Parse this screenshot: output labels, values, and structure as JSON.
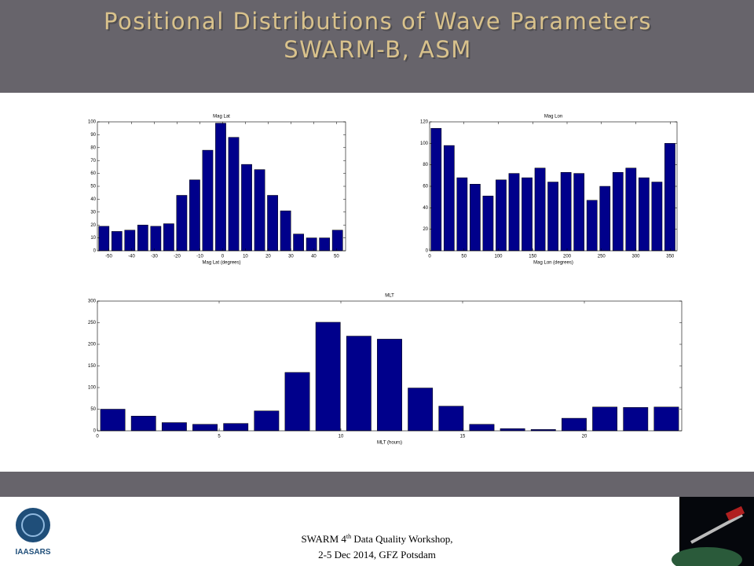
{
  "header": {
    "title": [
      "Positional Distributions of Wave Parameters",
      "SWARM-B, ASM"
    ]
  },
  "chart_data": [
    {
      "type": "histogram",
      "title": "Mag Lat",
      "x_label": "Mag Lat (degrees)",
      "color": "#00008b",
      "bins": [
        -55,
        -49.3,
        -43.6,
        -37.9,
        -32.2,
        -26.5,
        -20.8,
        -15.1,
        -9.4,
        -3.7,
        2,
        7.7,
        13.4,
        19.1,
        24.8,
        30.5,
        36.2,
        41.9,
        47.6,
        53.3
      ],
      "values": [
        19,
        15,
        16,
        20,
        19,
        21,
        43,
        55,
        78,
        99,
        88,
        67,
        63,
        43,
        31,
        13,
        10,
        10,
        16
      ],
      "xlim": [
        -55,
        54
      ],
      "xticks": [
        -50,
        -40,
        -30,
        -20,
        -10,
        0,
        10,
        20,
        30,
        40,
        50
      ],
      "ylim": [
        0,
        100
      ],
      "yticks": [
        0,
        10,
        20,
        30,
        40,
        50,
        60,
        70,
        80,
        90,
        100
      ]
    },
    {
      "type": "histogram",
      "title": "Mag Lon",
      "x_label": "Mag Lon (degrees)",
      "color": "#00008b",
      "bins": [
        0,
        18.9,
        37.8,
        56.7,
        75.6,
        94.5,
        113.4,
        132.3,
        151.2,
        170.1,
        189,
        207.9,
        226.8,
        245.7,
        264.6,
        283.5,
        302.4,
        321.3,
        340.2,
        359.1
      ],
      "values": [
        114,
        98,
        68,
        62,
        51,
        66,
        72,
        68,
        77,
        64,
        73,
        72,
        47,
        60,
        73,
        77,
        68,
        64,
        100
      ],
      "xlim": [
        0,
        360
      ],
      "xticks": [
        0,
        50,
        100,
        150,
        200,
        250,
        300,
        350
      ],
      "ylim": [
        0,
        120
      ],
      "yticks": [
        0,
        20,
        40,
        60,
        80,
        100,
        120
      ]
    },
    {
      "type": "histogram",
      "title": "MLT",
      "x_label": "MLT (hours)",
      "color": "#00008b",
      "bins": [
        0,
        1.263,
        2.526,
        3.789,
        5.053,
        6.316,
        7.579,
        8.842,
        10.105,
        11.368,
        12.632,
        13.895,
        15.158,
        16.421,
        17.684,
        18.947,
        20.211,
        21.474,
        22.737,
        24
      ],
      "values": [
        50,
        34,
        19,
        15,
        17,
        46,
        135,
        251,
        219,
        212,
        99,
        57,
        15,
        5,
        3,
        29,
        55,
        54,
        55
      ],
      "xlim": [
        0,
        24
      ],
      "xticks": [
        0,
        5,
        10,
        15,
        20
      ],
      "ylim": [
        0,
        300
      ],
      "yticks": [
        0,
        50,
        100,
        150,
        200,
        250,
        300
      ]
    }
  ],
  "logo": {
    "text": "IAASARS"
  },
  "footer": {
    "line1": [
      "SWARM 4",
      "th",
      " Data Quality Workshop,"
    ],
    "line2": "2-5 Dec 2014, GFZ Potsdam"
  }
}
